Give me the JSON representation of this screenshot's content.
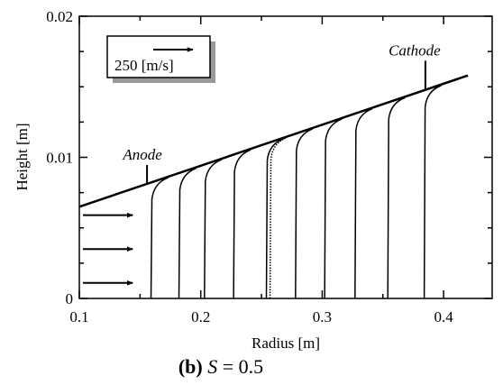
{
  "chart_data": {
    "type": "line",
    "xlabel": "Radius [m]",
    "ylabel": "Height [m]",
    "xlim": [
      0.1,
      0.44
    ],
    "ylim": [
      0,
      0.02
    ],
    "x_ticks": [
      "0.1",
      "0.2",
      "0.3",
      "0.4"
    ],
    "y_ticks": [
      "0",
      "0.01",
      "0.02"
    ],
    "caption": {
      "label": "(b)",
      "variable": "S",
      "equals": " = 0.5"
    },
    "legend": {
      "text": "250 [m/s]",
      "position": "top-left"
    },
    "annotations": [
      {
        "text": "Anode",
        "x": 0.155,
        "y": 0.00805
      },
      {
        "text": "Cathode",
        "x": 0.385,
        "y": 0.0148
      }
    ],
    "boundary": {
      "x": [
        0.1,
        0.42
      ],
      "y": [
        0.0065,
        0.0158
      ]
    },
    "inlet_arrows_y": [
      0.0059,
      0.0035,
      0.0011
    ],
    "profiles": [
      {
        "r": 0.162,
        "style": "solid"
      },
      {
        "r": 0.185,
        "style": "solid"
      },
      {
        "r": 0.206,
        "style": "solid"
      },
      {
        "r": 0.23,
        "style": "solid"
      },
      {
        "r": 0.257,
        "style": "solid"
      },
      {
        "r": 0.26,
        "style": "dotted"
      },
      {
        "r": 0.281,
        "style": "solid"
      },
      {
        "r": 0.305,
        "style": "solid"
      },
      {
        "r": 0.33,
        "style": "solid"
      },
      {
        "r": 0.357,
        "style": "solid"
      },
      {
        "r": 0.387,
        "style": "solid"
      }
    ]
  }
}
